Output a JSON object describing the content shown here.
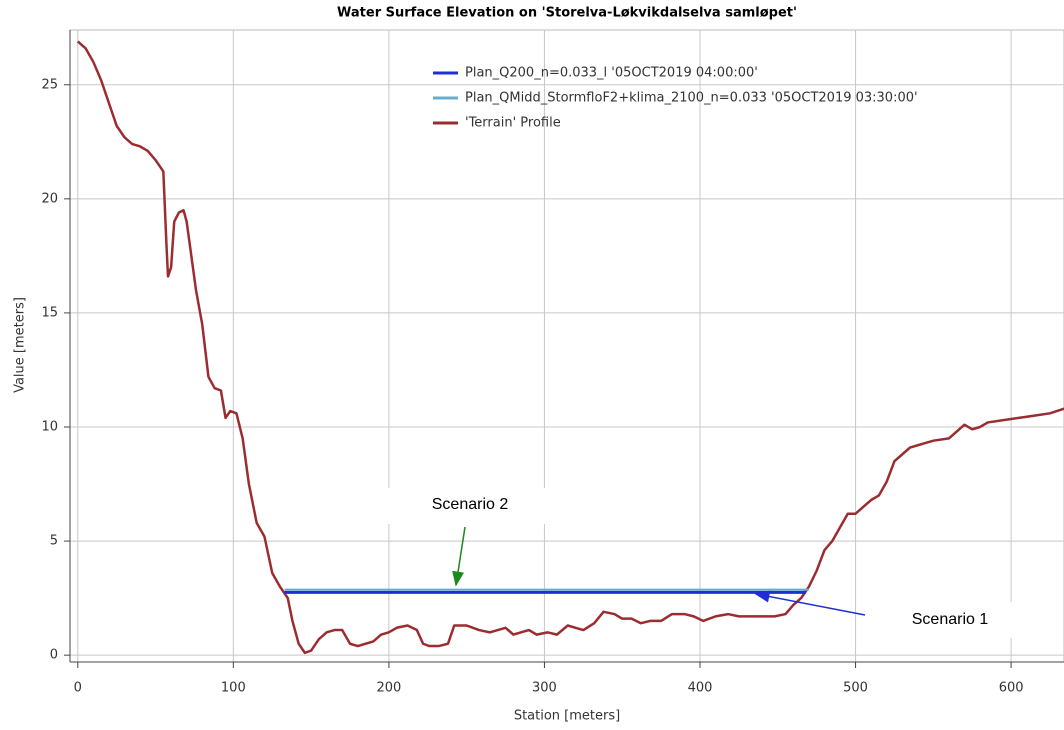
{
  "chart_data": {
    "type": "line",
    "title": "Water Surface Elevation on 'Storelva-Løkvikdalselva samløpet'",
    "x_label": "Station [meters]",
    "y_label": "Value [meters]",
    "xlim": [
      -5,
      634
    ],
    "ylim": [
      -0.3,
      27.4
    ],
    "xticks": [
      0,
      100,
      200,
      300,
      400,
      500,
      600
    ],
    "yticks": [
      0,
      5,
      10,
      15,
      20,
      25
    ],
    "grid": true,
    "legend": "top",
    "series": [
      {
        "name": "Plan_Q200_n=0.033_l '05OCT2019 04:00:00'",
        "color": "#1f2fd8",
        "width": 3,
        "x": [
          133,
          468
        ],
        "values": [
          2.75,
          2.75
        ]
      },
      {
        "name": "Plan_QMidd_StormfloF2+klima_2100_n=0.033 '05OCT2019 03:30:00'",
        "color": "#6aaccb",
        "width": 2,
        "x": [
          133,
          470
        ],
        "values": [
          2.87,
          2.87
        ]
      },
      {
        "name": "'Terrain' Profile",
        "color": "#9b2d30",
        "width": 2.5,
        "x": [
          0,
          5,
          10,
          15,
          20,
          25,
          30,
          35,
          40,
          45,
          50,
          55,
          57,
          58,
          60,
          62,
          65,
          68,
          70,
          73,
          76,
          80,
          84,
          88,
          92,
          95,
          98,
          102,
          106,
          110,
          115,
          120,
          125,
          130,
          135,
          138,
          142,
          146,
          150,
          155,
          160,
          165,
          170,
          175,
          180,
          185,
          190,
          195,
          200,
          205,
          212,
          218,
          222,
          226,
          232,
          238,
          242,
          250,
          258,
          265,
          270,
          275,
          280,
          285,
          290,
          295,
          302,
          308,
          315,
          320,
          325,
          332,
          338,
          345,
          350,
          356,
          362,
          368,
          375,
          382,
          390,
          396,
          402,
          410,
          418,
          425,
          432,
          440,
          448,
          455,
          460,
          465,
          470,
          475,
          480,
          485,
          490,
          495,
          500,
          505,
          510,
          515,
          520,
          525,
          530,
          535,
          540,
          545,
          550,
          560,
          565,
          570,
          575,
          580,
          585,
          595,
          605,
          615,
          625,
          634
        ],
        "values": [
          26.9,
          26.6,
          26.0,
          25.2,
          24.2,
          23.2,
          22.7,
          22.4,
          22.3,
          22.1,
          21.7,
          21.2,
          18,
          16.6,
          17,
          19,
          19.4,
          19.5,
          19.0,
          17.5,
          16,
          14.5,
          12.2,
          11.7,
          11.6,
          10.4,
          10.7,
          10.6,
          9.5,
          7.5,
          5.8,
          5.2,
          3.6,
          3.0,
          2.5,
          1.5,
          0.5,
          0.1,
          0.2,
          0.7,
          1.0,
          1.1,
          1.1,
          0.5,
          0.4,
          0.5,
          0.6,
          0.9,
          1.0,
          1.2,
          1.3,
          1.1,
          0.5,
          0.4,
          0.4,
          0.5,
          1.3,
          1.3,
          1.1,
          1.0,
          1.1,
          1.2,
          0.9,
          1.0,
          1.1,
          0.9,
          1.0,
          0.9,
          1.3,
          1.2,
          1.1,
          1.4,
          1.9,
          1.8,
          1.6,
          1.6,
          1.4,
          1.5,
          1.5,
          1.8,
          1.8,
          1.7,
          1.5,
          1.7,
          1.8,
          1.7,
          1.7,
          1.7,
          1.7,
          1.8,
          2.2,
          2.5,
          3.0,
          3.7,
          4.6,
          5.0,
          5.6,
          6.2,
          6.2,
          6.5,
          6.8,
          7.0,
          7.6,
          8.5,
          8.8,
          9.1,
          9.2,
          9.3,
          9.4,
          9.5,
          9.8,
          10.1,
          9.9,
          10.0,
          10.2,
          10.3,
          10.4,
          10.5,
          10.6,
          10.8
        ]
      }
    ],
    "annotations": [
      "Scenario 2",
      "Scenario 1"
    ]
  }
}
